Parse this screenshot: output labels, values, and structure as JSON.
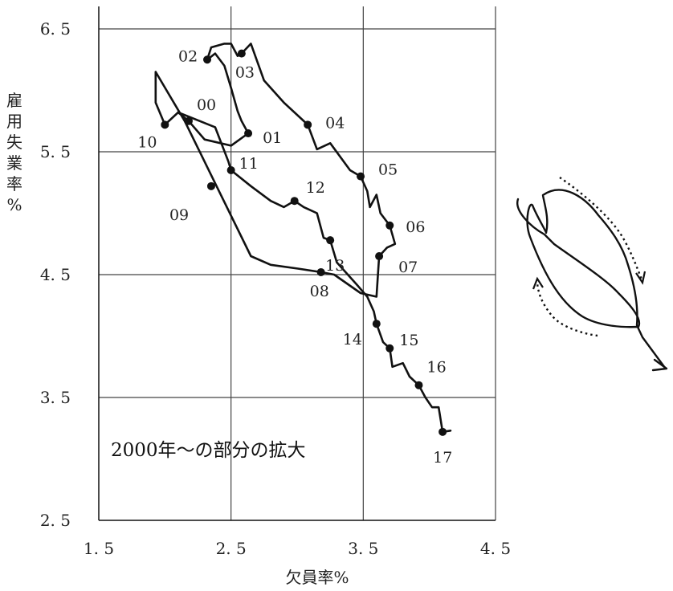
{
  "chart_data": {
    "type": "line",
    "xlabel": "欠員率%",
    "ylabel": "雇用失業率%",
    "xlim": [
      1.5,
      4.5
    ],
    "ylim": [
      2.5,
      6.5
    ],
    "x_ticks": [
      "1.5",
      "2.5",
      "3.5",
      "4.5"
    ],
    "y_ticks": [
      "2.5",
      "3.5",
      "4.5",
      "5.5",
      "6.5"
    ],
    "grid": true,
    "annotation": "2000年～の部分の拡大",
    "path": [
      [
        1.93,
        6.15
      ],
      [
        1.93,
        5.9
      ],
      [
        2.0,
        5.72
      ],
      [
        2.1,
        5.82
      ],
      [
        2.18,
        5.75
      ],
      [
        2.3,
        5.6
      ],
      [
        2.5,
        5.55
      ],
      [
        2.63,
        5.65
      ],
      [
        2.58,
        5.75
      ],
      [
        2.55,
        5.83
      ],
      [
        2.5,
        6.02
      ],
      [
        2.45,
        6.2
      ],
      [
        2.38,
        6.3
      ],
      [
        2.32,
        6.25
      ],
      [
        2.35,
        6.35
      ],
      [
        2.45,
        6.38
      ],
      [
        2.5,
        6.38
      ],
      [
        2.55,
        6.28
      ],
      [
        2.58,
        6.3
      ],
      [
        2.65,
        6.38
      ],
      [
        2.75,
        6.08
      ],
      [
        2.9,
        5.9
      ],
      [
        3.08,
        5.72
      ],
      [
        3.15,
        5.52
      ],
      [
        3.25,
        5.57
      ],
      [
        3.4,
        5.35
      ],
      [
        3.48,
        5.3
      ],
      [
        3.53,
        5.18
      ],
      [
        3.55,
        5.05
      ],
      [
        3.6,
        5.15
      ],
      [
        3.63,
        5.0
      ],
      [
        3.7,
        4.9
      ],
      [
        3.74,
        4.75
      ],
      [
        3.68,
        4.72
      ],
      [
        3.62,
        4.65
      ],
      [
        3.6,
        4.32
      ],
      [
        3.48,
        4.35
      ],
      [
        3.28,
        4.5
      ],
      [
        3.18,
        4.52
      ],
      [
        3.0,
        4.55
      ],
      [
        2.8,
        4.58
      ],
      [
        2.65,
        4.65
      ],
      [
        2.4,
        5.2
      ],
      [
        2.15,
        5.75
      ],
      [
        1.93,
        6.15
      ]
    ],
    "path2": [
      [
        2.1,
        5.82
      ],
      [
        2.38,
        5.7
      ],
      [
        2.48,
        5.42
      ],
      [
        2.5,
        5.35
      ],
      [
        2.65,
        5.22
      ],
      [
        2.8,
        5.1
      ],
      [
        2.9,
        5.05
      ],
      [
        2.98,
        5.1
      ],
      [
        3.05,
        5.05
      ],
      [
        3.15,
        5.0
      ],
      [
        3.2,
        4.8
      ],
      [
        3.25,
        4.78
      ],
      [
        3.3,
        4.6
      ],
      [
        3.45,
        4.42
      ],
      [
        3.53,
        4.32
      ],
      [
        3.58,
        4.2
      ],
      [
        3.6,
        4.1
      ],
      [
        3.65,
        3.95
      ],
      [
        3.7,
        3.9
      ],
      [
        3.72,
        3.75
      ],
      [
        3.8,
        3.78
      ],
      [
        3.85,
        3.67
      ],
      [
        3.92,
        3.6
      ],
      [
        3.97,
        3.5
      ],
      [
        4.02,
        3.42
      ],
      [
        4.07,
        3.42
      ],
      [
        4.1,
        3.22
      ],
      [
        4.16,
        3.23
      ]
    ],
    "points": [
      {
        "label": "00",
        "x": 2.18,
        "y": 5.75
      },
      {
        "label": "01",
        "x": 2.63,
        "y": 5.65
      },
      {
        "label": "02",
        "x": 2.32,
        "y": 6.25
      },
      {
        "label": "03",
        "x": 2.58,
        "y": 6.3
      },
      {
        "label": "04",
        "x": 3.08,
        "y": 5.72
      },
      {
        "label": "05",
        "x": 3.48,
        "y": 5.3
      },
      {
        "label": "06",
        "x": 3.7,
        "y": 4.9
      },
      {
        "label": "07",
        "x": 3.62,
        "y": 4.65
      },
      {
        "label": "08",
        "x": 3.18,
        "y": 4.52
      },
      {
        "label": "09",
        "x": 2.35,
        "y": 5.22
      },
      {
        "label": "10",
        "x": 2.0,
        "y": 5.72
      },
      {
        "label": "11",
        "x": 2.5,
        "y": 5.35
      },
      {
        "label": "12",
        "x": 2.98,
        "y": 5.1
      },
      {
        "label": "13",
        "x": 3.25,
        "y": 4.78
      },
      {
        "label": "14",
        "x": 3.6,
        "y": 4.1
      },
      {
        "label": "15",
        "x": 3.7,
        "y": 3.9
      },
      {
        "label": "16",
        "x": 3.92,
        "y": 3.6
      },
      {
        "label": "17",
        "x": 4.1,
        "y": 3.22
      }
    ]
  }
}
